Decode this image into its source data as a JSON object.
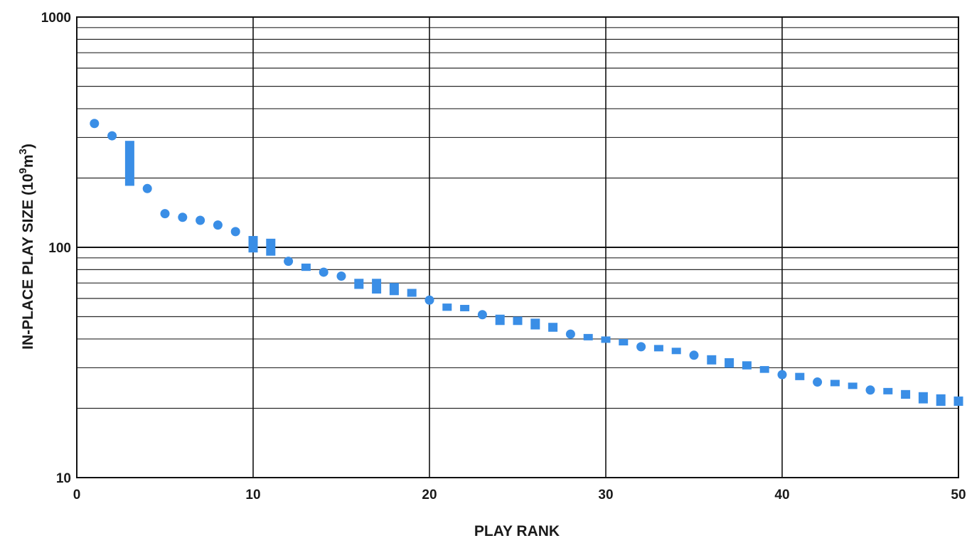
{
  "chart_data": {
    "type": "scatter",
    "xlabel": "PLAY RANK",
    "ylabel_main": "IN-PLACE PLAY SIZE  (10",
    "ylabel_sup1": "9",
    "ylabel_mid": "m",
    "ylabel_sup2": "3",
    "ylabel_end": ")",
    "xlim": [
      0,
      50
    ],
    "ylim": [
      10,
      1000
    ],
    "y_scale": "log",
    "grid": true,
    "x_ticks": [
      "0",
      "10",
      "20",
      "30",
      "40",
      "50"
    ],
    "y_ticks": [
      "10",
      "100",
      "1000"
    ],
    "marker_color": "#3a8ee6",
    "circles": [
      {
        "x": 1,
        "y": 345
      },
      {
        "x": 2,
        "y": 305
      },
      {
        "x": 4,
        "y": 180
      },
      {
        "x": 5,
        "y": 140
      },
      {
        "x": 6,
        "y": 135
      },
      {
        "x": 7,
        "y": 131
      },
      {
        "x": 8,
        "y": 125
      },
      {
        "x": 9,
        "y": 117
      },
      {
        "x": 12,
        "y": 87
      },
      {
        "x": 14,
        "y": 78
      },
      {
        "x": 15,
        "y": 75
      },
      {
        "x": 20,
        "y": 59
      },
      {
        "x": 23,
        "y": 51
      },
      {
        "x": 28,
        "y": 42
      },
      {
        "x": 32,
        "y": 37
      },
      {
        "x": 35,
        "y": 34
      },
      {
        "x": 40,
        "y": 28
      },
      {
        "x": 42,
        "y": 26
      },
      {
        "x": 45,
        "y": 24
      }
    ],
    "ranges": [
      {
        "x": 3,
        "low": 185,
        "high": 290
      },
      {
        "x": 10,
        "low": 95,
        "high": 112
      },
      {
        "x": 11,
        "low": 92,
        "high": 109
      },
      {
        "x": 13,
        "low": 79,
        "high": 85
      },
      {
        "x": 16,
        "low": 66,
        "high": 73
      },
      {
        "x": 17,
        "low": 63,
        "high": 73
      },
      {
        "x": 18,
        "low": 62,
        "high": 70
      },
      {
        "x": 19,
        "low": 61,
        "high": 66
      },
      {
        "x": 21,
        "low": 53,
        "high": 57
      },
      {
        "x": 22,
        "low": 53,
        "high": 56
      },
      {
        "x": 24,
        "low": 46,
        "high": 51
      },
      {
        "x": 25,
        "low": 46,
        "high": 50
      },
      {
        "x": 26,
        "low": 44,
        "high": 49
      },
      {
        "x": 27,
        "low": 43,
        "high": 47
      },
      {
        "x": 29,
        "low": 39.5,
        "high": 42
      },
      {
        "x": 30,
        "low": 38.5,
        "high": 41
      },
      {
        "x": 31,
        "low": 37.5,
        "high": 40
      },
      {
        "x": 33,
        "low": 35.5,
        "high": 37.5
      },
      {
        "x": 34,
        "low": 34.5,
        "high": 36.5
      },
      {
        "x": 36,
        "low": 31,
        "high": 34
      },
      {
        "x": 37,
        "low": 30,
        "high": 33
      },
      {
        "x": 38,
        "low": 29.5,
        "high": 32
      },
      {
        "x": 39,
        "low": 28.5,
        "high": 30.5
      },
      {
        "x": 41,
        "low": 26.5,
        "high": 28.5
      },
      {
        "x": 43,
        "low": 25,
        "high": 26.5
      },
      {
        "x": 44,
        "low": 24.3,
        "high": 25.8
      },
      {
        "x": 46,
        "low": 23,
        "high": 24.5
      },
      {
        "x": 47,
        "low": 22,
        "high": 24
      },
      {
        "x": 48,
        "low": 21,
        "high": 23.5
      },
      {
        "x": 49,
        "low": 20.5,
        "high": 23
      },
      {
        "x": 50,
        "low": 20.5,
        "high": 22.5
      }
    ]
  }
}
